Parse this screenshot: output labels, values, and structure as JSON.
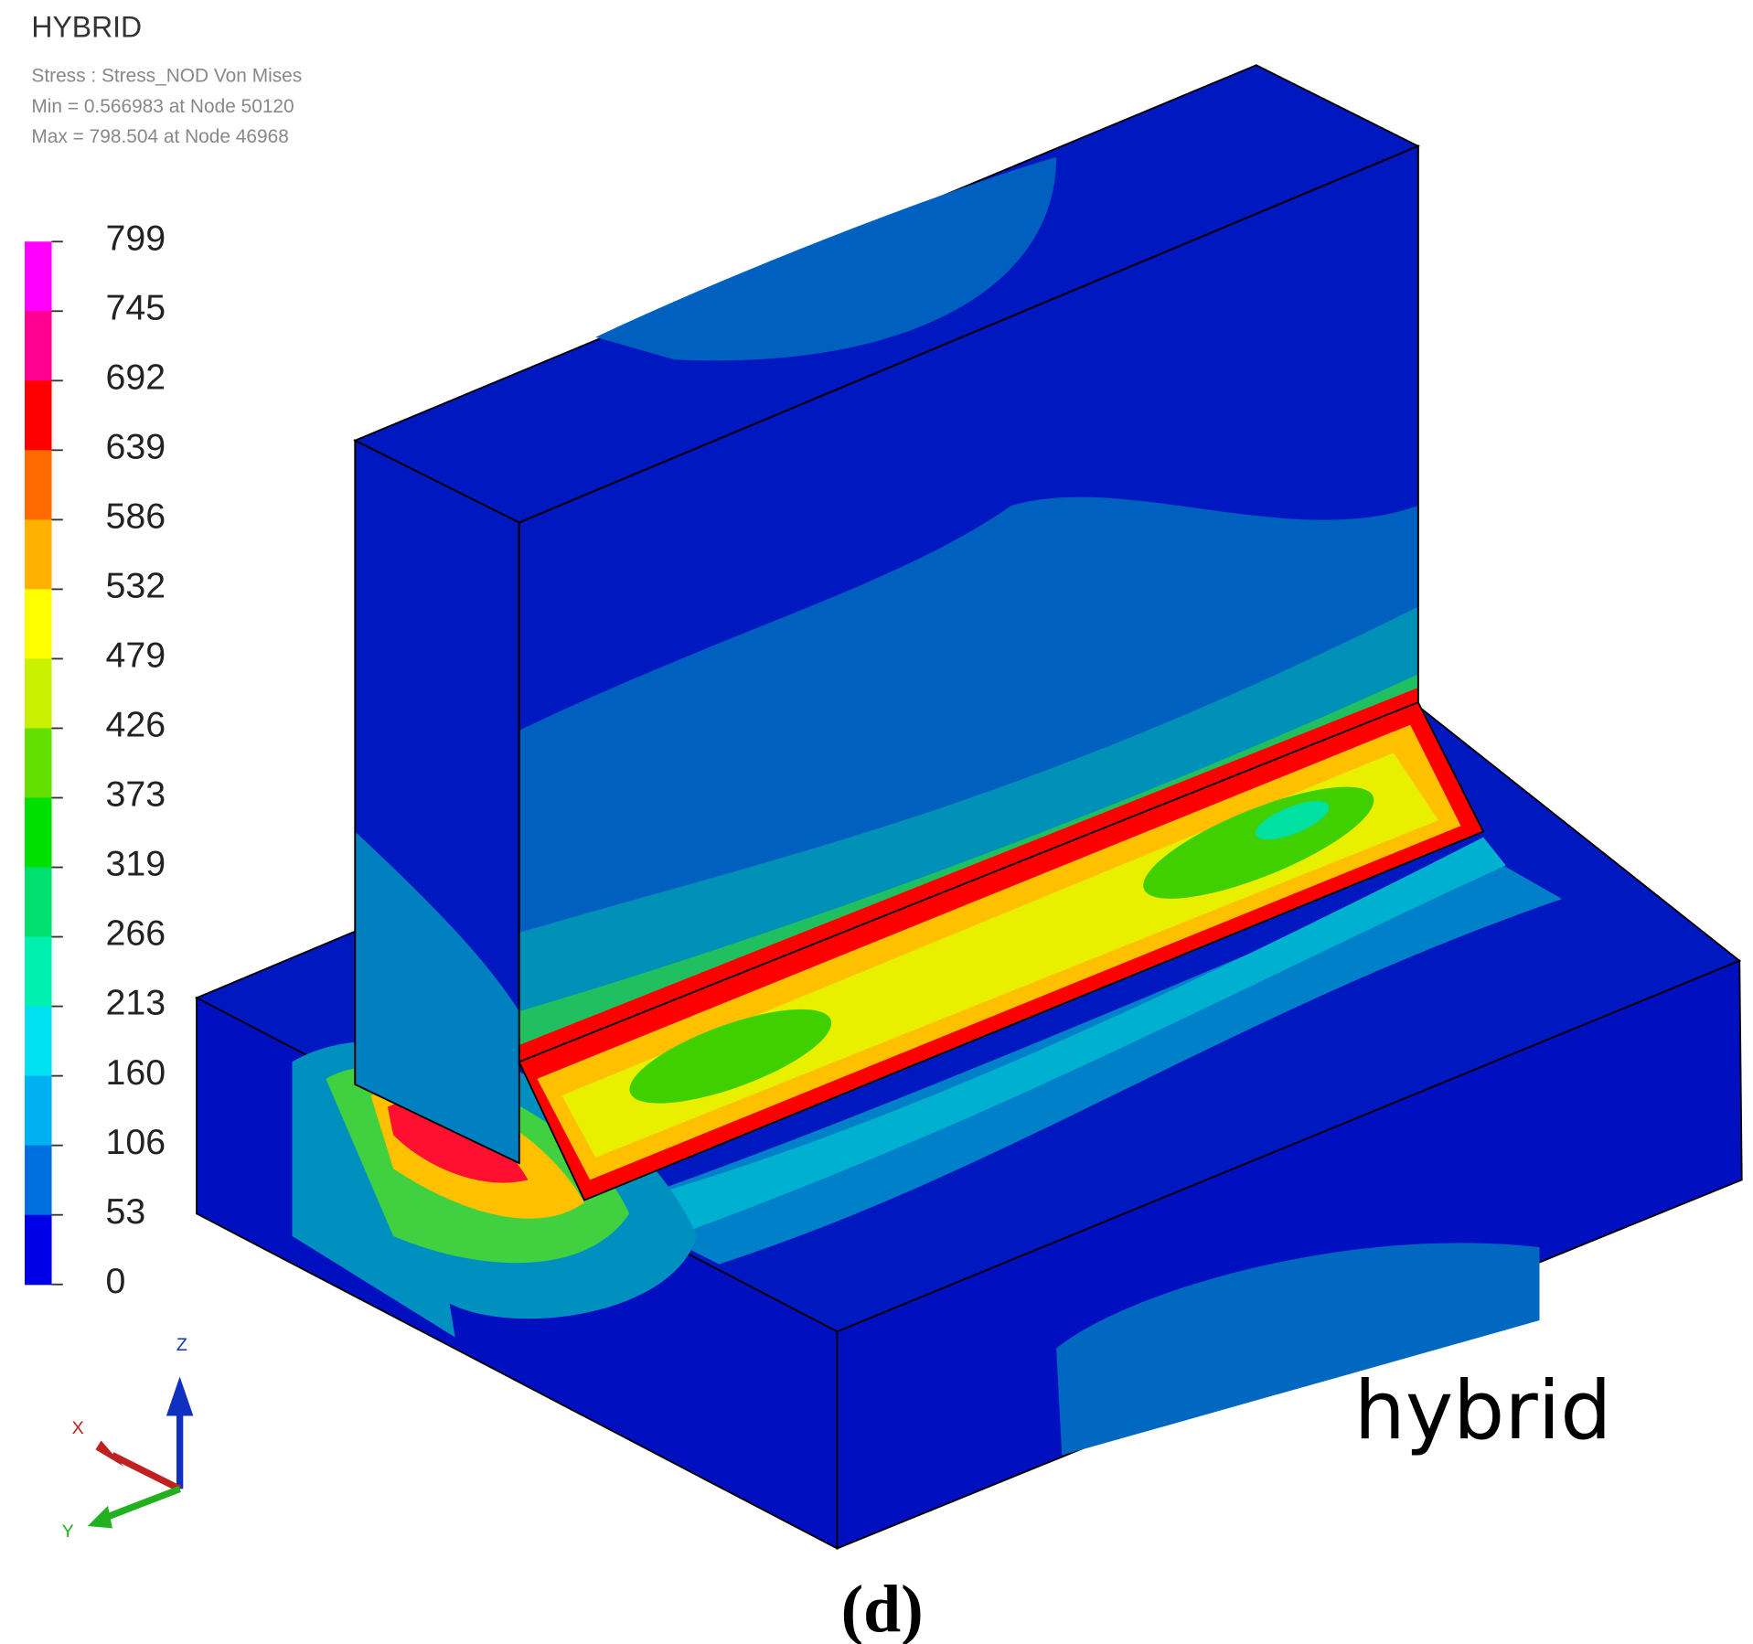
{
  "header": {
    "title": "HYBRID",
    "lines": [
      "Stress : Stress_NOD Von Mises",
      "Min = 0.566983 at Node 50120",
      "Max = 798.504 at Node 46968"
    ]
  },
  "legend": {
    "labels": [
      799,
      745,
      692,
      639,
      586,
      532,
      479,
      426,
      373,
      319,
      266,
      213,
      160,
      106,
      53,
      0
    ],
    "colors": [
      "#ff00ff",
      "#ff0090",
      "#ff0000",
      "#ff6a00",
      "#ffb000",
      "#ffff00",
      "#c8f000",
      "#64e000",
      "#00e000",
      "#00e070",
      "#00f0b0",
      "#00e0f0",
      "#00b0f0",
      "#0070e0",
      "#0000e8"
    ]
  },
  "triad": {
    "z": "Z",
    "x": "X",
    "y": "Y"
  },
  "label": "hybrid",
  "caption": "(d)"
}
